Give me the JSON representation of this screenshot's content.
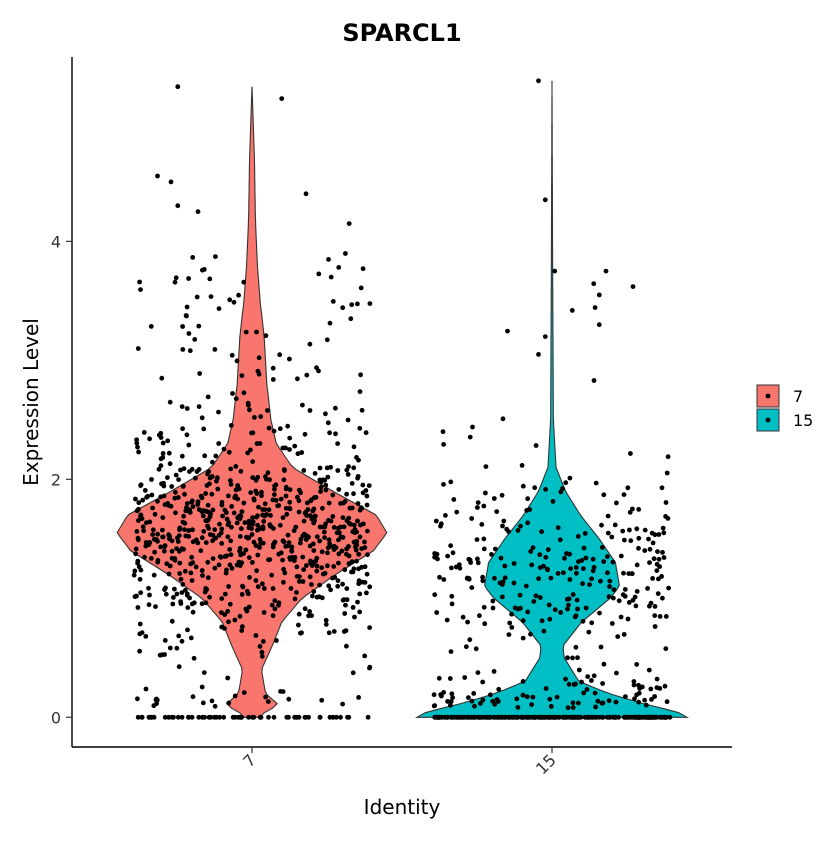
{
  "chart_data": {
    "type": "violin",
    "title": "SPARCL1",
    "xlabel": "Identity",
    "ylabel": "Expression Level",
    "ylim": [
      -0.25,
      5.55
    ],
    "yticks": [
      0,
      2,
      4
    ],
    "grid": false,
    "legend_position": "right",
    "point_color": "#000000",
    "groups": [
      {
        "name": "7",
        "color": "#F8766D",
        "x_tick": "7",
        "n_cells": 900,
        "zero_cells": 60,
        "y_max": 5.3,
        "median": 1.55,
        "density_profile": [
          [
            0.0,
            0.06
          ],
          [
            0.05,
            0.1
          ],
          [
            0.1,
            0.2
          ],
          [
            0.2,
            0.1
          ],
          [
            0.4,
            0.07
          ],
          [
            0.6,
            0.15
          ],
          [
            0.8,
            0.22
          ],
          [
            1.0,
            0.37
          ],
          [
            1.2,
            0.62
          ],
          [
            1.4,
            0.9
          ],
          [
            1.55,
            1.0
          ],
          [
            1.7,
            0.92
          ],
          [
            1.9,
            0.6
          ],
          [
            2.1,
            0.3
          ],
          [
            2.3,
            0.18
          ],
          [
            2.5,
            0.14
          ],
          [
            2.8,
            0.11
          ],
          [
            3.2,
            0.09
          ],
          [
            3.5,
            0.06
          ],
          [
            3.8,
            0.04
          ],
          [
            4.2,
            0.025
          ],
          [
            4.7,
            0.018
          ],
          [
            5.3,
            0.0
          ]
        ],
        "outlier_points": [
          [
            5.3,
            -0.55
          ],
          [
            5.2,
            0.22
          ],
          [
            4.55,
            -0.7
          ],
          [
            4.5,
            -0.6
          ],
          [
            4.4,
            0.4
          ],
          [
            4.3,
            -0.55
          ],
          [
            4.25,
            -0.4
          ],
          [
            4.15,
            0.72
          ]
        ]
      },
      {
        "name": "15",
        "color": "#00BFC4",
        "x_tick": "15",
        "n_cells": 600,
        "zero_cells": 240,
        "y_max": 5.35,
        "median": 0.85,
        "density_profile": [
          [
            0.0,
            1.0
          ],
          [
            0.05,
            0.92
          ],
          [
            0.1,
            0.72
          ],
          [
            0.2,
            0.42
          ],
          [
            0.3,
            0.2
          ],
          [
            0.5,
            0.09
          ],
          [
            0.6,
            0.08
          ],
          [
            0.8,
            0.22
          ],
          [
            1.0,
            0.43
          ],
          [
            1.1,
            0.5
          ],
          [
            1.3,
            0.47
          ],
          [
            1.5,
            0.35
          ],
          [
            1.7,
            0.21
          ],
          [
            1.9,
            0.1
          ],
          [
            2.1,
            0.03
          ],
          [
            2.5,
            0.01
          ],
          [
            3.0,
            0.008
          ],
          [
            4.0,
            0.004
          ],
          [
            5.35,
            0.0
          ]
        ],
        "outlier_points": [
          [
            5.35,
            -0.1
          ],
          [
            4.35,
            -0.05
          ],
          [
            3.75,
            0.02
          ],
          [
            3.75,
            0.4
          ],
          [
            3.62,
            0.6
          ],
          [
            3.55,
            0.35
          ],
          [
            3.42,
            0.15
          ],
          [
            3.3,
            0.35
          ],
          [
            3.2,
            -0.05
          ],
          [
            3.05,
            -0.1
          ]
        ]
      }
    ],
    "legend": {
      "entries": [
        {
          "label": "7",
          "color": "#F8766D"
        },
        {
          "label": "15",
          "color": "#00BFC4"
        }
      ]
    }
  }
}
